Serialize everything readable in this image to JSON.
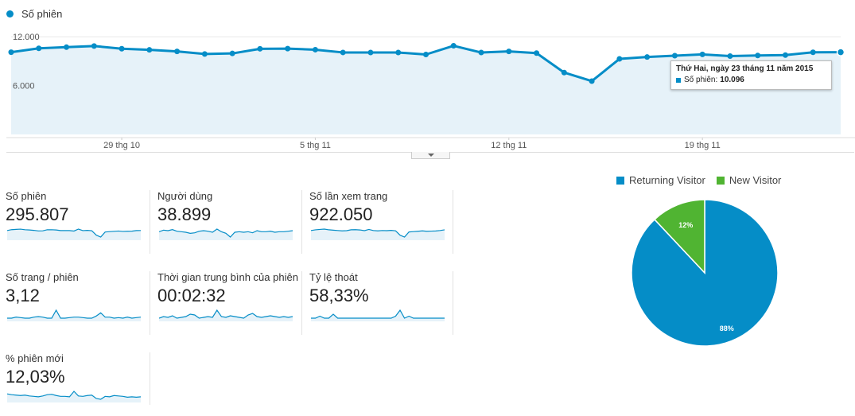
{
  "colors": {
    "accent": "#058dc7",
    "fill": "#e6f2f9",
    "returning": "#058dc7",
    "new": "#50b432"
  },
  "top_legend": {
    "label": "Số phiên"
  },
  "chart_data": [
    {
      "type": "area",
      "title": "",
      "series": [
        {
          "name": "Số phiên",
          "values": [
            10100,
            10580,
            10720,
            10860,
            10530,
            10390,
            10200,
            9880,
            9950,
            10520,
            10540,
            10410,
            10070,
            10060,
            10060,
            9820,
            10890,
            10060,
            10200,
            9990,
            7600,
            6550,
            9280,
            9510,
            9670,
            9830,
            9620,
            9700,
            9750,
            10090,
            10100
          ]
        }
      ],
      "ylim": [
        0,
        12800
      ],
      "yticks": [
        {
          "value": 12000,
          "label": "12.000"
        },
        {
          "value": 6000,
          "label": "6.000"
        }
      ],
      "xticks": [
        {
          "index": 4,
          "label": "29 thg 10"
        },
        {
          "index": 11,
          "label": "5 thg 11"
        },
        {
          "index": 18,
          "label": "12 thg 11"
        },
        {
          "index": 25,
          "label": "19 thg 11"
        }
      ],
      "highlight_index": 30
    },
    {
      "type": "pie",
      "slices": [
        {
          "name": "Returning Visitor",
          "value": 88,
          "label": "88%"
        },
        {
          "name": "New Visitor",
          "value": 12,
          "label": "12%"
        }
      ]
    }
  ],
  "tooltip": {
    "date": "Thứ Hai, ngày 23 tháng 11 năm 2015",
    "series_label": "Số phiên:",
    "value": "10.096"
  },
  "metrics": [
    {
      "label": "Số phiên",
      "value": "295.807",
      "spark": [
        10100,
        10580,
        10720,
        10860,
        10530,
        10390,
        10200,
        9880,
        9950,
        10520,
        10540,
        10410,
        10070,
        10060,
        10060,
        9820,
        10890,
        10060,
        10200,
        9990,
        7600,
        6550,
        9280,
        9510,
        9670,
        9830,
        9620,
        9700,
        9750,
        10090,
        10100
      ]
    },
    {
      "label": "Người dùng",
      "value": "38.899",
      "spark": [
        1450,
        1480,
        1470,
        1490,
        1460,
        1450,
        1440,
        1420,
        1430,
        1460,
        1470,
        1460,
        1440,
        1500,
        1450,
        1420,
        1350,
        1440,
        1450,
        1440,
        1450,
        1430,
        1470,
        1450,
        1450,
        1460,
        1440,
        1450,
        1450,
        1460,
        1470
      ]
    },
    {
      "label": "Số lần xem trang",
      "value": "922.050",
      "spark": [
        31000,
        32000,
        32500,
        33000,
        32000,
        31500,
        31000,
        30500,
        30800,
        32000,
        32200,
        31800,
        30800,
        32500,
        31000,
        30500,
        31000,
        30800,
        31200,
        30600,
        24500,
        22000,
        29000,
        29500,
        30000,
        30500,
        30000,
        30200,
        30400,
        31000,
        32000
      ]
    },
    {
      "label": "Số trang / phiên",
      "value": "3,12",
      "spark": [
        3.1,
        3.1,
        3.12,
        3.11,
        3.1,
        3.1,
        3.12,
        3.13,
        3.12,
        3.1,
        3.1,
        3.25,
        3.1,
        3.1,
        3.11,
        3.12,
        3.12,
        3.11,
        3.1,
        3.1,
        3.14,
        3.2,
        3.12,
        3.12,
        3.1,
        3.11,
        3.1,
        3.12,
        3.1,
        3.11,
        3.12
      ]
    },
    {
      "label": "Thời gian trung bình của phiên",
      "value": "00:02:32",
      "spark": [
        150,
        152,
        151,
        153,
        150,
        151,
        152,
        155,
        154,
        150,
        151,
        152,
        151,
        160,
        152,
        151,
        153,
        152,
        151,
        150,
        154,
        156,
        152,
        151,
        152,
        153,
        152,
        151,
        152,
        151,
        152
      ]
    },
    {
      "label": "Tỷ lệ thoát",
      "value": "58,33%",
      "spark": [
        58,
        58,
        58.1,
        58,
        58,
        58.2,
        58,
        58,
        58,
        58,
        58,
        58,
        58,
        58,
        58,
        58,
        58,
        58,
        58,
        58.1,
        58.4,
        58,
        58.1,
        58,
        58,
        58,
        58,
        58,
        58,
        58,
        58
      ]
    },
    {
      "label": "% phiên mới",
      "value": "12,03%",
      "spark": [
        12.3,
        12.1,
        12,
        11.9,
        12,
        11.8,
        11.7,
        11.6,
        11.8,
        12.1,
        12.2,
        11.9,
        11.7,
        11.7,
        11.6,
        12.9,
        11.8,
        11.7,
        11.9,
        12,
        11.2,
        11,
        11.7,
        11.6,
        11.9,
        11.8,
        11.7,
        11.5,
        11.6,
        11.5,
        11.6
      ]
    }
  ]
}
